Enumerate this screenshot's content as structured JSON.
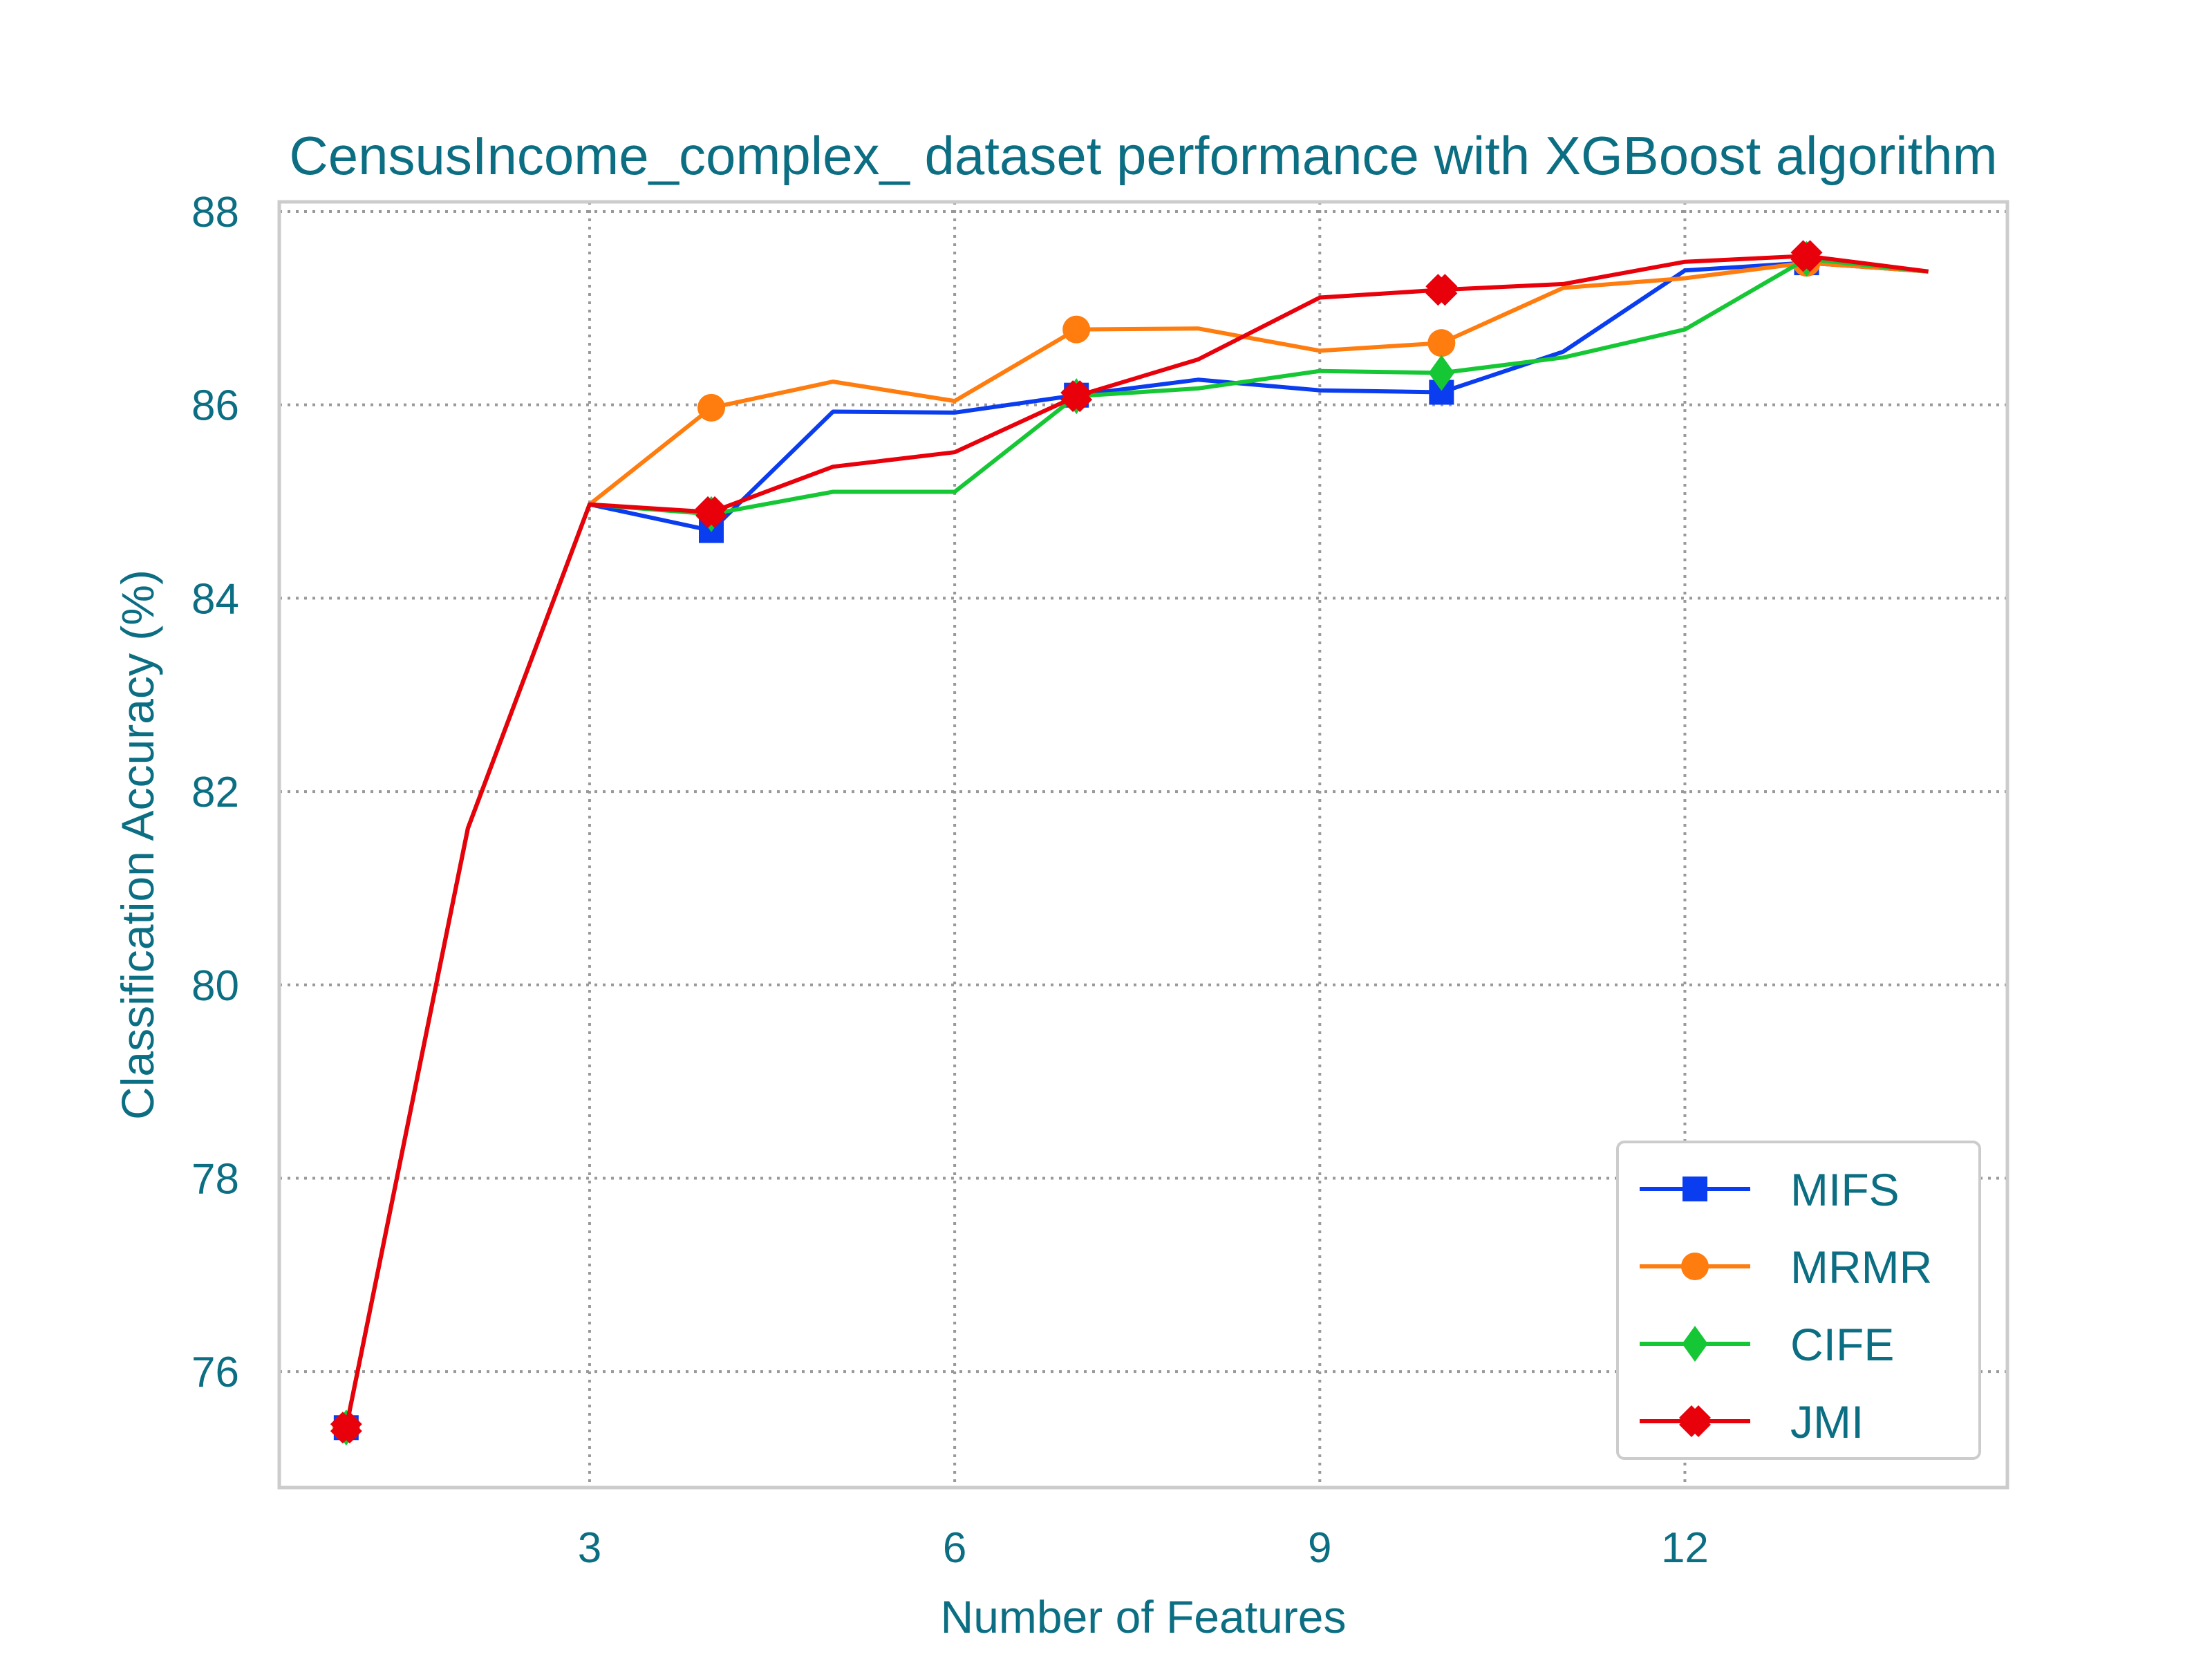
{
  "chart_data": {
    "type": "line",
    "title": "CensusIncome_complex_ dataset performance with XGBoost algorithm",
    "xlabel": "Number of Features",
    "ylabel": "Classification Accuracy (%)",
    "xlim": [
      0.45,
      14.65
    ],
    "ylim": [
      74.8,
      88.1
    ],
    "xticks": [
      3,
      6,
      9,
      12
    ],
    "xtick_labels": [
      "3",
      "6",
      "9",
      "12"
    ],
    "yticks": [
      76,
      78,
      80,
      82,
      84,
      86,
      88
    ],
    "ytick_labels": [
      "76",
      "78",
      "80",
      "82",
      "84",
      "86",
      "88"
    ],
    "grid": true,
    "legend_position": "lower-right",
    "x": [
      1,
      2,
      3,
      4,
      5,
      6,
      7,
      8,
      9,
      10,
      11,
      12,
      13,
      14
    ],
    "series": [
      {
        "name": "MIFS",
        "color": "#0a3cf0",
        "marker": "square",
        "marker_every": [
          1,
          4,
          7,
          10,
          13
        ],
        "values": [
          75.42,
          81.62,
          84.97,
          84.7,
          85.93,
          85.92,
          86.1,
          86.26,
          86.15,
          86.13,
          86.55,
          87.39,
          87.47,
          87.38
        ]
      },
      {
        "name": "MRMR",
        "color": "#ff7c0f",
        "marker": "circle",
        "marker_every": [
          1,
          4,
          7,
          10,
          13
        ],
        "values": [
          75.42,
          81.62,
          84.97,
          85.97,
          86.24,
          86.04,
          86.78,
          86.79,
          86.56,
          86.64,
          87.21,
          87.31,
          87.47,
          87.38
        ]
      },
      {
        "name": "CIFE",
        "color": "#16c735",
        "marker": "diamond",
        "marker_every": [
          1,
          4,
          7,
          10,
          13
        ],
        "values": [
          75.42,
          81.62,
          84.97,
          84.87,
          85.1,
          85.1,
          86.09,
          86.17,
          86.35,
          86.33,
          86.49,
          86.78,
          87.51,
          87.38
        ]
      },
      {
        "name": "JMI",
        "color": "#e8000b",
        "marker": "x",
        "marker_every": [
          1,
          4,
          7,
          10,
          13
        ],
        "values": [
          75.42,
          81.62,
          84.97,
          84.89,
          85.36,
          85.51,
          86.09,
          86.47,
          87.11,
          87.19,
          87.25,
          87.48,
          87.54,
          87.38
        ]
      }
    ]
  }
}
